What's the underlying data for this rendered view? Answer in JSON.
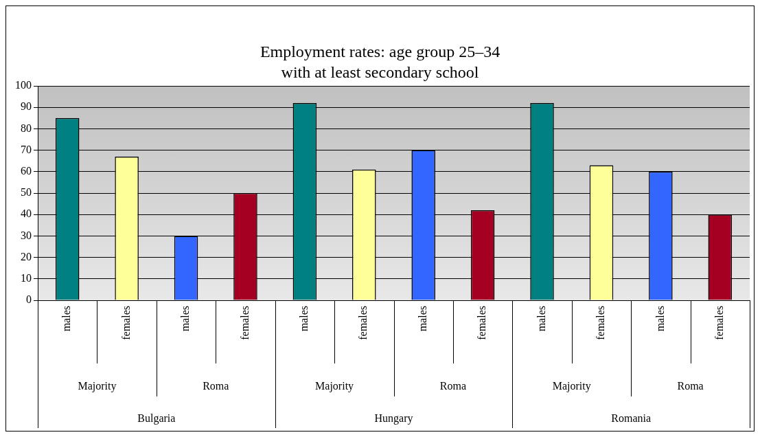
{
  "chart_data": {
    "type": "bar",
    "title": "Employment rates: age group 25–34",
    "subtitle": "with at least secondary school",
    "categories": [
      "males",
      "females",
      "males",
      "females",
      "males",
      "females",
      "males",
      "females",
      "males",
      "females",
      "males",
      "females"
    ],
    "values": [
      85,
      67,
      30,
      50,
      92,
      61,
      70,
      42,
      92,
      63,
      60,
      40
    ],
    "colors": [
      "#008080",
      "#ffff99",
      "#3366ff",
      "#a50021",
      "#008080",
      "#ffff99",
      "#3366ff",
      "#a50021",
      "#008080",
      "#ffff99",
      "#3366ff",
      "#a50021"
    ],
    "ylim": [
      0,
      100
    ],
    "yticks": [
      0,
      10,
      20,
      30,
      40,
      50,
      60,
      70,
      80,
      90,
      100
    ],
    "grid": "y",
    "legend": false,
    "annotations": [
      "Majority",
      "Roma",
      "Majority",
      "Roma",
      "Majority",
      "Roma",
      "Bulgaria",
      "Hungary",
      "Romania"
    ]
  }
}
